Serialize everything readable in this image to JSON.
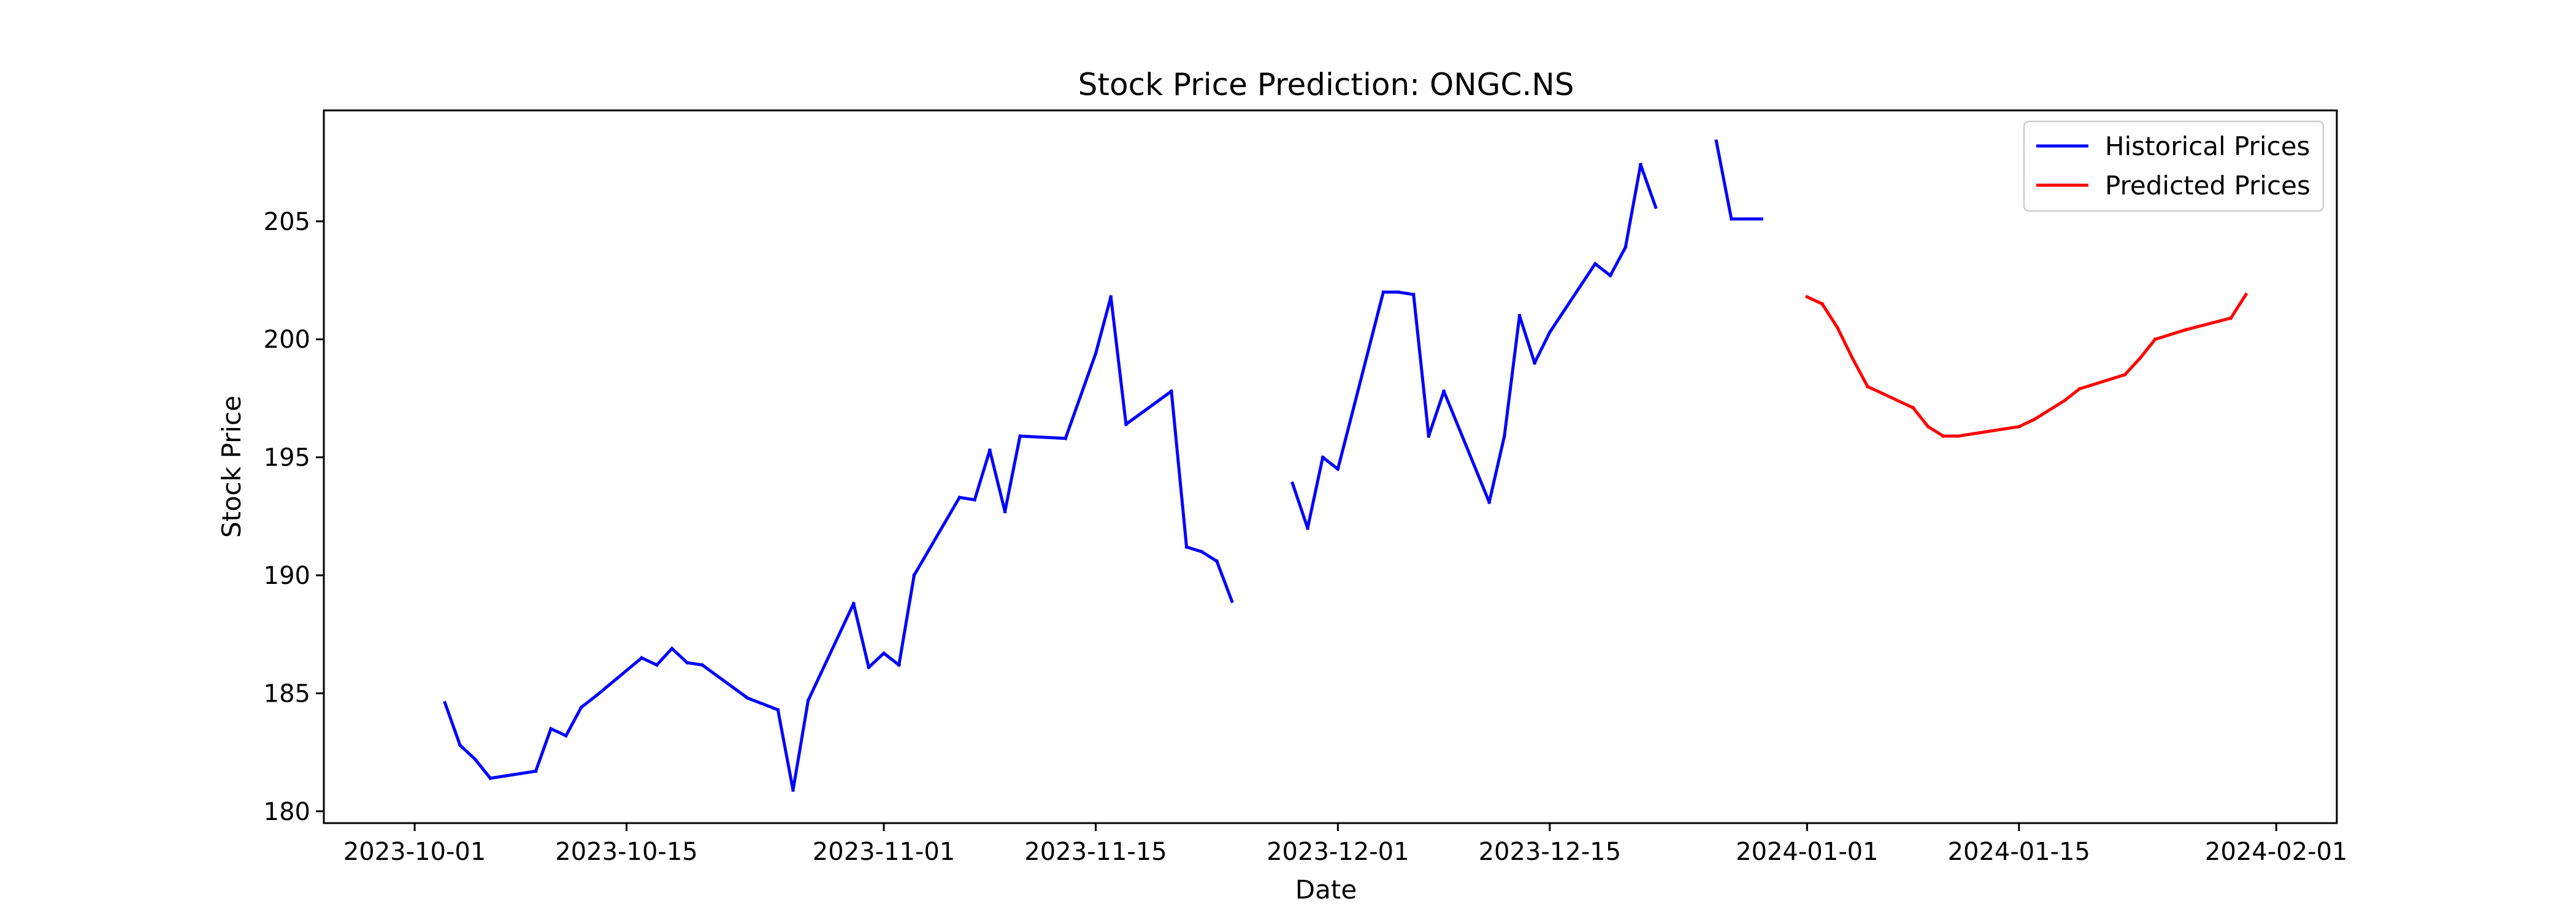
{
  "chart_data": {
    "type": "line",
    "title": "Stock Price Prediction: ONGC.NS",
    "xlabel": "Date",
    "ylabel": "Stock Price",
    "xlim": [
      "2023-09-25",
      "2024-02-05"
    ],
    "ylim": [
      179.5,
      209.7
    ],
    "x_ticks": [
      "2023-10-01",
      "2023-10-15",
      "2023-11-01",
      "2023-11-15",
      "2023-12-01",
      "2023-12-15",
      "2024-01-01",
      "2024-01-15",
      "2024-02-01"
    ],
    "y_ticks": [
      180,
      185,
      190,
      195,
      200,
      205
    ],
    "grid": false,
    "legend_position": "top-right",
    "series": [
      {
        "name": "Historical Prices",
        "color": "#0000ff",
        "x": [
          "2023-10-03",
          "2023-10-04",
          "2023-10-05",
          "2023-10-06",
          "2023-10-09",
          "2023-10-10",
          "2023-10-11",
          "2023-10-12",
          "2023-10-13",
          "2023-10-16",
          "2023-10-17",
          "2023-10-18",
          "2023-10-19",
          "2023-10-20",
          "2023-10-23",
          "2023-10-25",
          "2023-10-26",
          "2023-10-27",
          "2023-10-30",
          "2023-10-31",
          "2023-11-01",
          "2023-11-02",
          "2023-11-03",
          "2023-11-06",
          "2023-11-07",
          "2023-11-08",
          "2023-11-09",
          "2023-11-10",
          "2023-11-13",
          "2023-11-15",
          "2023-11-16",
          "2023-11-17",
          "2023-11-20",
          "2023-11-21",
          "2023-11-22",
          "2023-11-23",
          "2023-11-24",
          "2023-11-28",
          "2023-11-29",
          "2023-11-30",
          "2023-12-01",
          "2023-12-04",
          "2023-12-05",
          "2023-12-06",
          "2023-12-07",
          "2023-12-08",
          "2023-12-11",
          "2023-12-12",
          "2023-12-13",
          "2023-12-14",
          "2023-12-15",
          "2023-12-18",
          "2023-12-19",
          "2023-12-20",
          "2023-12-21",
          "2023-12-22",
          "2023-12-26",
          "2023-12-27",
          "2023-12-28",
          "2023-12-29"
        ],
        "y": [
          184.6,
          182.8,
          182.2,
          181.4,
          181.7,
          183.5,
          183.2,
          184.4,
          184.9,
          186.5,
          186.2,
          186.9,
          186.3,
          186.2,
          184.8,
          184.3,
          180.9,
          184.7,
          188.8,
          186.1,
          186.7,
          186.2,
          190.0,
          193.3,
          193.2,
          195.3,
          192.7,
          195.9,
          195.8,
          199.4,
          201.8,
          196.4,
          197.8,
          191.2,
          191.0,
          190.6,
          188.9,
          193.9,
          192.0,
          195.0,
          194.5,
          202.0,
          202.0,
          201.9,
          195.9,
          197.8,
          193.1,
          195.9,
          201.0,
          199.0,
          200.3,
          203.2,
          202.7,
          203.9,
          207.4,
          205.6,
          208.4,
          205.1,
          205.1,
          205.1
        ]
      },
      {
        "name": "Predicted Prices",
        "color": "#ff0000",
        "x": [
          "2024-01-01",
          "2024-01-02",
          "2024-01-03",
          "2024-01-04",
          "2024-01-05",
          "2024-01-08",
          "2024-01-09",
          "2024-01-10",
          "2024-01-11",
          "2024-01-12",
          "2024-01-15",
          "2024-01-16",
          "2024-01-17",
          "2024-01-18",
          "2024-01-19",
          "2024-01-22",
          "2024-01-23",
          "2024-01-24",
          "2024-01-25",
          "2024-01-26",
          "2024-01-29",
          "2024-01-30"
        ],
        "y": [
          201.8,
          201.5,
          200.5,
          199.2,
          198.0,
          197.1,
          196.3,
          195.9,
          195.9,
          196.0,
          196.3,
          196.6,
          197.0,
          197.4,
          197.9,
          198.5,
          199.2,
          200.0,
          200.2,
          200.4,
          200.9,
          201.9
        ]
      }
    ]
  }
}
